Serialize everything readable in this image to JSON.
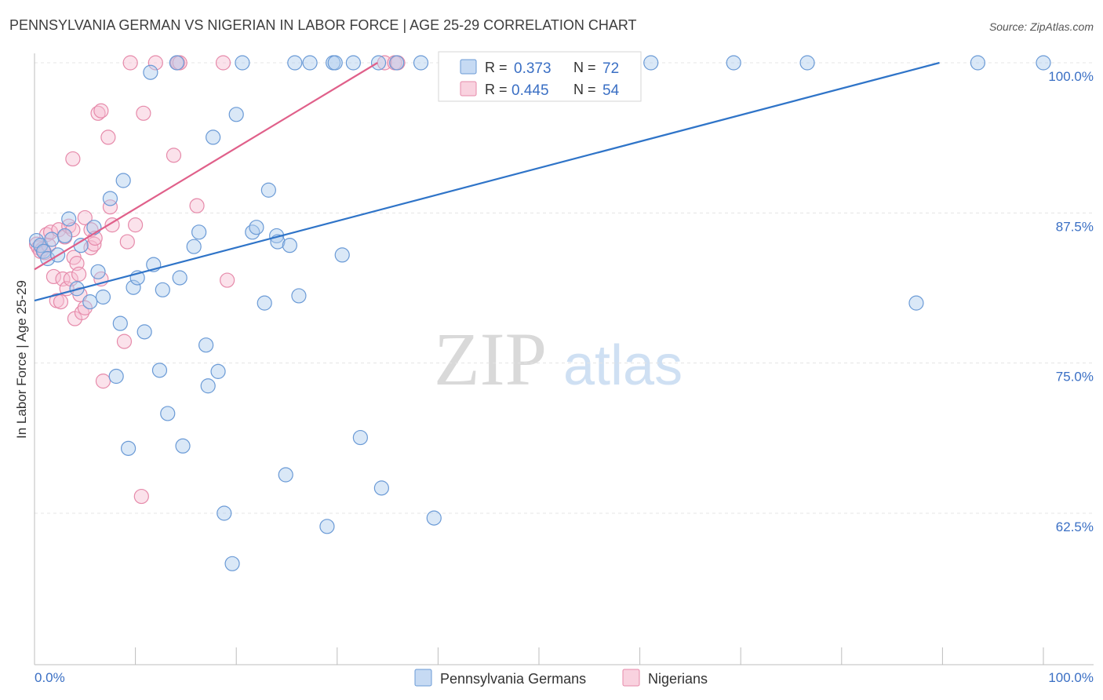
{
  "chart_data": {
    "type": "scatter",
    "title": "PENNSYLVANIA GERMAN VS NIGERIAN IN LABOR FORCE | AGE 25-29 CORRELATION CHART",
    "source": "Source: ZipAtlas.com",
    "xlabel": "",
    "ylabel": "In Labor Force | Age 25-29",
    "xlim": [
      0,
      100
    ],
    "ylim": [
      50,
      100
    ],
    "y_ticks": [
      {
        "value": 100.0,
        "label": "100.0%"
      },
      {
        "value": 87.5,
        "label": "87.5%"
      },
      {
        "value": 75.0,
        "label": "75.0%"
      },
      {
        "value": 62.5,
        "label": "62.5%"
      }
    ],
    "x_tick_labels": {
      "left": "0.0%",
      "right": "100.0%"
    },
    "watermark": {
      "zip": "ZIP",
      "atlas": "atlas"
    },
    "legend_stats": [
      {
        "r_label": "R =",
        "r_value": "0.373",
        "n_label": "N =",
        "n_value": "72"
      },
      {
        "r_label": "R =",
        "r_value": "0.445",
        "n_label": "N =",
        "n_value": "54"
      }
    ],
    "series": [
      {
        "name": "Pennsylvania Germans",
        "fill": "#aecbee",
        "stroke": "#6a9ad6",
        "line_color": "#2f74c8",
        "trend": {
          "x0": 0,
          "y0": 80.2,
          "x1": 89.7,
          "y1": 100
        },
        "points": [
          {
            "x": 0.2,
            "y": 85.2
          },
          {
            "x": 0.6,
            "y": 84.8
          },
          {
            "x": 0.9,
            "y": 84.3
          },
          {
            "x": 1.3,
            "y": 83.7
          },
          {
            "x": 1.7,
            "y": 85.3
          },
          {
            "x": 2.3,
            "y": 84.0
          },
          {
            "x": 3.0,
            "y": 85.6
          },
          {
            "x": 3.4,
            "y": 87.0
          },
          {
            "x": 4.2,
            "y": 81.2
          },
          {
            "x": 4.6,
            "y": 84.8
          },
          {
            "x": 5.5,
            "y": 80.1
          },
          {
            "x": 5.9,
            "y": 86.3
          },
          {
            "x": 6.3,
            "y": 82.6
          },
          {
            "x": 6.8,
            "y": 80.5
          },
          {
            "x": 7.5,
            "y": 88.7
          },
          {
            "x": 8.1,
            "y": 73.9
          },
          {
            "x": 8.5,
            "y": 78.3
          },
          {
            "x": 8.8,
            "y": 90.2
          },
          {
            "x": 9.3,
            "y": 67.9
          },
          {
            "x": 9.8,
            "y": 81.3
          },
          {
            "x": 10.2,
            "y": 82.1
          },
          {
            "x": 10.9,
            "y": 77.6
          },
          {
            "x": 11.5,
            "y": 99.2
          },
          {
            "x": 11.8,
            "y": 83.2
          },
          {
            "x": 12.4,
            "y": 74.4
          },
          {
            "x": 12.7,
            "y": 81.1
          },
          {
            "x": 13.2,
            "y": 70.8
          },
          {
            "x": 14.1,
            "y": 100
          },
          {
            "x": 14.4,
            "y": 82.1
          },
          {
            "x": 14.7,
            "y": 68.1
          },
          {
            "x": 15.8,
            "y": 84.7
          },
          {
            "x": 16.3,
            "y": 85.9
          },
          {
            "x": 17.0,
            "y": 76.5
          },
          {
            "x": 17.2,
            "y": 73.1
          },
          {
            "x": 17.7,
            "y": 93.8
          },
          {
            "x": 18.2,
            "y": 74.3
          },
          {
            "x": 18.8,
            "y": 62.5
          },
          {
            "x": 19.6,
            "y": 58.3
          },
          {
            "x": 20.0,
            "y": 95.7
          },
          {
            "x": 20.6,
            "y": 100
          },
          {
            "x": 21.6,
            "y": 85.9
          },
          {
            "x": 22.0,
            "y": 86.3
          },
          {
            "x": 22.8,
            "y": 80.0
          },
          {
            "x": 23.2,
            "y": 89.4
          },
          {
            "x": 24.0,
            "y": 85.6
          },
          {
            "x": 24.1,
            "y": 85.1
          },
          {
            "x": 24.9,
            "y": 65.7
          },
          {
            "x": 25.3,
            "y": 84.8
          },
          {
            "x": 25.8,
            "y": 100
          },
          {
            "x": 26.2,
            "y": 80.6
          },
          {
            "x": 27.3,
            "y": 100
          },
          {
            "x": 29.0,
            "y": 61.4
          },
          {
            "x": 29.6,
            "y": 100
          },
          {
            "x": 29.8,
            "y": 100
          },
          {
            "x": 30.5,
            "y": 84.0
          },
          {
            "x": 31.6,
            "y": 100
          },
          {
            "x": 32.3,
            "y": 68.8
          },
          {
            "x": 34.1,
            "y": 100
          },
          {
            "x": 34.4,
            "y": 64.6
          },
          {
            "x": 35.9,
            "y": 100
          },
          {
            "x": 38.3,
            "y": 100
          },
          {
            "x": 39.6,
            "y": 62.1
          },
          {
            "x": 41.4,
            "y": 100
          },
          {
            "x": 42.5,
            "y": 100
          },
          {
            "x": 45.3,
            "y": 100
          },
          {
            "x": 47.6,
            "y": 100
          },
          {
            "x": 61.1,
            "y": 100
          },
          {
            "x": 69.3,
            "y": 100
          },
          {
            "x": 76.6,
            "y": 100
          },
          {
            "x": 87.4,
            "y": 80.0
          },
          {
            "x": 93.5,
            "y": 100
          },
          {
            "x": 100,
            "y": 100
          }
        ]
      },
      {
        "name": "Nigerians",
        "fill": "#f7bfd2",
        "stroke": "#e68aaa",
        "line_color": "#e0608a",
        "trend": {
          "x0": 0,
          "y0": 82.8,
          "x1": 34.0,
          "y1": 100
        },
        "points": [
          {
            "x": 0.2,
            "y": 84.9
          },
          {
            "x": 0.4,
            "y": 84.6
          },
          {
            "x": 0.6,
            "y": 84.3
          },
          {
            "x": 0.8,
            "y": 84.5
          },
          {
            "x": 1.0,
            "y": 84.2
          },
          {
            "x": 1.2,
            "y": 85.7
          },
          {
            "x": 1.4,
            "y": 84.8
          },
          {
            "x": 1.6,
            "y": 85.9
          },
          {
            "x": 1.9,
            "y": 82.2
          },
          {
            "x": 2.2,
            "y": 80.2
          },
          {
            "x": 2.4,
            "y": 86.1
          },
          {
            "x": 2.6,
            "y": 80.1
          },
          {
            "x": 2.8,
            "y": 82.0
          },
          {
            "x": 3.0,
            "y": 85.5
          },
          {
            "x": 3.2,
            "y": 81.2
          },
          {
            "x": 3.4,
            "y": 86.4
          },
          {
            "x": 3.6,
            "y": 82.0
          },
          {
            "x": 3.8,
            "y": 86.1
          },
          {
            "x": 3.9,
            "y": 83.8
          },
          {
            "x": 3.8,
            "y": 92.0
          },
          {
            "x": 4.0,
            "y": 78.7
          },
          {
            "x": 4.2,
            "y": 83.3
          },
          {
            "x": 4.4,
            "y": 82.4
          },
          {
            "x": 4.5,
            "y": 80.7
          },
          {
            "x": 4.7,
            "y": 79.2
          },
          {
            "x": 5.0,
            "y": 79.6
          },
          {
            "x": 5.0,
            "y": 87.1
          },
          {
            "x": 5.6,
            "y": 86.1
          },
          {
            "x": 5.6,
            "y": 84.6
          },
          {
            "x": 5.9,
            "y": 84.9
          },
          {
            "x": 6.0,
            "y": 85.4
          },
          {
            "x": 6.3,
            "y": 95.8
          },
          {
            "x": 6.6,
            "y": 82.0
          },
          {
            "x": 6.6,
            "y": 96.0
          },
          {
            "x": 6.8,
            "y": 73.5
          },
          {
            "x": 7.3,
            "y": 93.8
          },
          {
            "x": 7.5,
            "y": 88.0
          },
          {
            "x": 7.7,
            "y": 86.5
          },
          {
            "x": 8.9,
            "y": 76.8
          },
          {
            "x": 9.2,
            "y": 85.1
          },
          {
            "x": 9.5,
            "y": 100
          },
          {
            "x": 10.0,
            "y": 86.5
          },
          {
            "x": 10.6,
            "y": 63.9
          },
          {
            "x": 10.8,
            "y": 95.8
          },
          {
            "x": 12.0,
            "y": 100
          },
          {
            "x": 13.8,
            "y": 92.3
          },
          {
            "x": 14.2,
            "y": 100
          },
          {
            "x": 14.4,
            "y": 100
          },
          {
            "x": 16.1,
            "y": 88.1
          },
          {
            "x": 18.7,
            "y": 100
          },
          {
            "x": 19.1,
            "y": 81.9
          },
          {
            "x": 34.7,
            "y": 100
          },
          {
            "x": 35.7,
            "y": 100
          },
          {
            "x": 36.0,
            "y": 100
          }
        ]
      }
    ]
  }
}
